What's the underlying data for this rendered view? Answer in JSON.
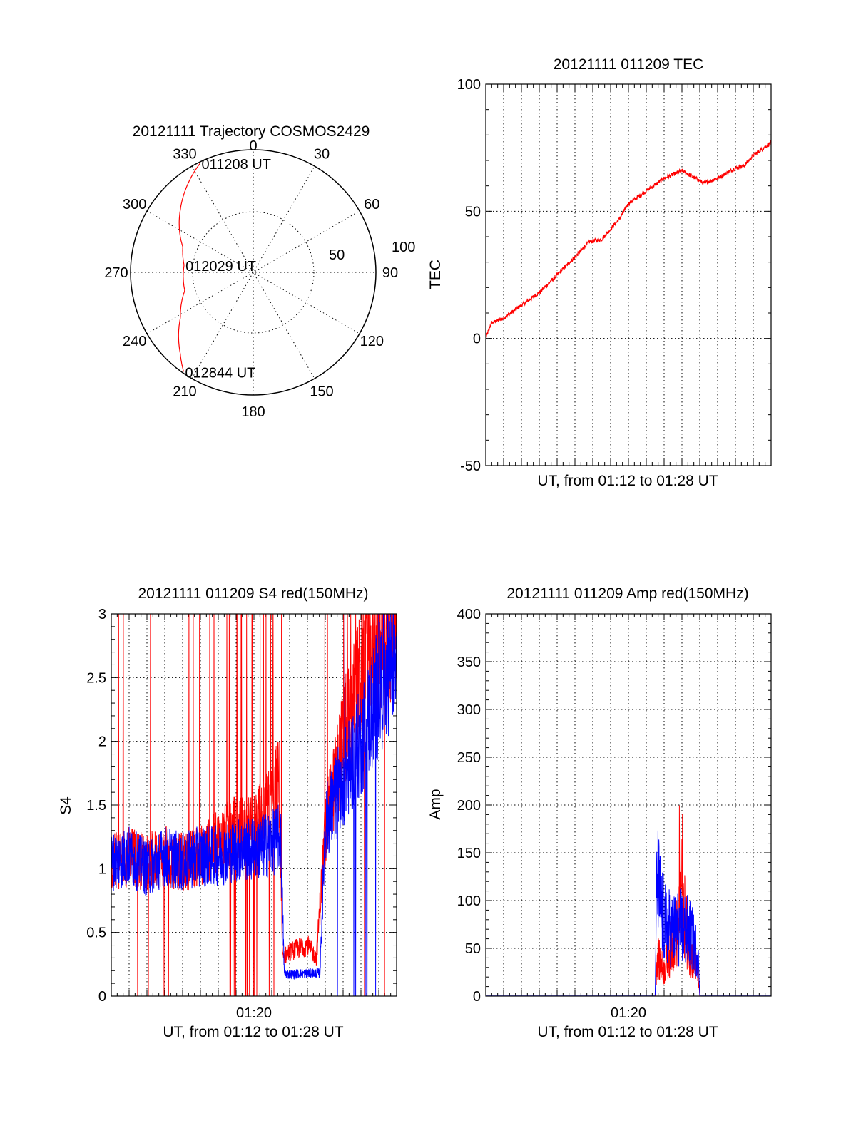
{
  "chart_data": [
    {
      "type": "polar",
      "title": "20121111 Trajectory COSMOS2429",
      "angle_labels": [
        "0",
        "30",
        "60",
        "90",
        "120",
        "150",
        "180",
        "210",
        "240",
        "270",
        "300",
        "330"
      ],
      "radial_labels": [
        "50",
        "100"
      ],
      "series": [
        {
          "color": "#ff0000",
          "points": [
            {
              "azimuth": 334,
              "zenith": 89,
              "label": "011208 UT"
            },
            {
              "azimuth": 310,
              "zenith": 70
            },
            {
              "azimuth": 290,
              "zenith": 55
            },
            {
              "azimuth": 276,
              "zenith": 51,
              "label": "012029 UT"
            },
            {
              "azimuth": 255,
              "zenith": 52
            },
            {
              "azimuth": 238,
              "zenith": 63
            },
            {
              "azimuth": 222,
              "zenith": 80
            },
            {
              "azimuth": 215,
              "zenith": 89,
              "label": "012844 UT"
            }
          ]
        }
      ]
    },
    {
      "type": "line",
      "title": "20121111 011209 TEC",
      "xlabel": "UT, from 01:12 to 01:28 UT",
      "ylabel": "TEC",
      "xlim": [
        0,
        16
      ],
      "ylim": [
        -50,
        100
      ],
      "yticks": [
        "-50",
        "0",
        "50",
        "100"
      ],
      "grid": true,
      "series": [
        {
          "color": "#ff0000",
          "x": [
            0,
            0.3,
            1,
            2,
            3,
            4,
            5,
            5.8,
            6.5,
            7.5,
            8,
            9,
            10,
            11,
            12,
            12.2,
            13,
            14,
            14.5,
            15,
            16
          ],
          "y": [
            0,
            6,
            8,
            13,
            18,
            25,
            32,
            38,
            39,
            47,
            53,
            58,
            63,
            66,
            62,
            61,
            63,
            67,
            68,
            72,
            77
          ]
        }
      ]
    },
    {
      "type": "line",
      "title": "20121111 011209 S4 red(150MHz)",
      "xlabel": "UT, from 01:12 to 01:28 UT",
      "ylabel": "S4",
      "xlim": [
        0,
        16
      ],
      "ylim": [
        0,
        3
      ],
      "yticks": [
        "0",
        "0.5",
        "1",
        "1.5",
        "2",
        "2.5",
        "3"
      ],
      "xtick_labels": [
        {
          "x": 8,
          "label": "01:20"
        }
      ],
      "grid": true,
      "series": [
        {
          "color": "#ff0000",
          "x": [
            0,
            1,
            2,
            3,
            4,
            5,
            6,
            7,
            8,
            9,
            9.4,
            9.6,
            10,
            11,
            11.5,
            12,
            13,
            14,
            15,
            16
          ],
          "y": [
            1.05,
            1.1,
            1.05,
            1.1,
            1.05,
            1.1,
            1.2,
            1.3,
            1.3,
            1.5,
            1.7,
            0.3,
            0.35,
            0.4,
            0.3,
            1.3,
            2.0,
            2.5,
            2.8,
            3.0
          ]
        },
        {
          "color": "#0000ff",
          "x": [
            0,
            1,
            2,
            3,
            4,
            5,
            6,
            7,
            8,
            9,
            9.5,
            9.7,
            10,
            11,
            11.7,
            12,
            13,
            14,
            15,
            16
          ],
          "y": [
            1.05,
            1.1,
            1.0,
            1.1,
            1.05,
            1.1,
            1.1,
            1.15,
            1.15,
            1.2,
            1.25,
            0.18,
            0.17,
            0.18,
            0.18,
            1.35,
            1.7,
            2.0,
            2.4,
            2.8
          ]
        }
      ]
    },
    {
      "type": "line",
      "title": "20121111 011209 Amp red(150MHz)",
      "xlabel": "UT, from 01:12 to 01:28 UT",
      "ylabel": "Amp",
      "xlim": [
        0,
        16
      ],
      "ylim": [
        0,
        400
      ],
      "yticks": [
        "0",
        "50",
        "100",
        "150",
        "200",
        "250",
        "300",
        "350",
        "400"
      ],
      "xtick_labels": [
        {
          "x": 8,
          "label": "01:20"
        }
      ],
      "grid": true,
      "series": [
        {
          "color": "#ff0000",
          "x": [
            0,
            9.5,
            9.6,
            10,
            10.5,
            10.8,
            11,
            11.2,
            11.5,
            11.9,
            12,
            16
          ],
          "y": [
            0,
            0,
            50,
            30,
            70,
            80,
            150,
            90,
            50,
            30,
            0,
            0
          ]
        },
        {
          "color": "#0000ff",
          "x": [
            0,
            9.5,
            9.6,
            10,
            10.5,
            11,
            11.5,
            11.9,
            12,
            16
          ],
          "y": [
            1,
            1,
            140,
            90,
            80,
            85,
            75,
            50,
            1,
            1
          ]
        }
      ]
    }
  ]
}
